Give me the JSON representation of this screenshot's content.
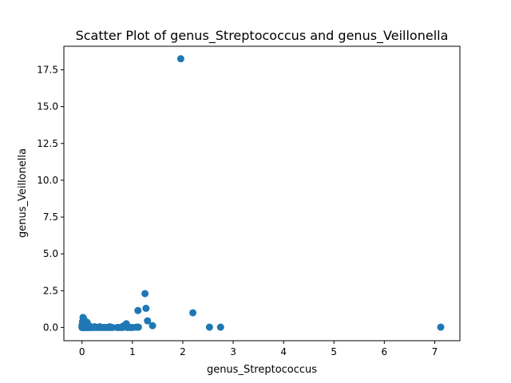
{
  "chart_data": {
    "type": "scatter",
    "title": "Scatter Plot of genus_Streptococcus and genus_Veillonella",
    "xlabel": "genus_Streptococcus",
    "ylabel": "genus_Veillonella",
    "xlim": [
      -0.36,
      7.5
    ],
    "ylim": [
      -0.9,
      19.1
    ],
    "xticks": [
      0,
      1,
      2,
      3,
      4,
      5,
      6,
      7
    ],
    "xtick_labels": [
      "0",
      "1",
      "2",
      "3",
      "4",
      "5",
      "6",
      "7"
    ],
    "yticks": [
      0,
      2.5,
      5,
      7.5,
      10,
      12.5,
      15,
      17.5
    ],
    "ytick_labels": [
      "0.0",
      "2.5",
      "5.0",
      "7.5",
      "10.0",
      "12.5",
      "15.0",
      "17.5"
    ],
    "grid": false,
    "marker_color": "#1f77b4",
    "series": [
      {
        "x": [
          1.96,
          1.25,
          1.27,
          1.11,
          2.2,
          1.3,
          1.4,
          7.12,
          2.53,
          2.75,
          0.0,
          0.01,
          0.02,
          0.03,
          0.05,
          0.07,
          0.09,
          0.1,
          0.12,
          0.15,
          0.18,
          0.2,
          0.25,
          0.3,
          0.35,
          0.4,
          0.45,
          0.5,
          0.55,
          0.6,
          0.7,
          0.75,
          0.8,
          0.85,
          0.9,
          0.95,
          1.0,
          1.08,
          1.12,
          0.02,
          0.04,
          0.01,
          0.03,
          0.06,
          0.1,
          0.12,
          0.15,
          0.08,
          0.02,
          0.0,
          0.0,
          0.05,
          0.03,
          0.25,
          0.35,
          0.55,
          0.88,
          0.82,
          0.05
        ],
        "y": [
          18.25,
          2.3,
          1.3,
          1.15,
          1.0,
          0.45,
          0.12,
          0.02,
          0.02,
          0.02,
          0.0,
          0.0,
          0.0,
          0.0,
          0.0,
          0.0,
          0.0,
          0.0,
          0.0,
          0.0,
          0.0,
          0.0,
          0.0,
          0.0,
          0.0,
          0.0,
          0.0,
          0.0,
          0.0,
          0.0,
          0.0,
          0.0,
          0.0,
          0.05,
          0.0,
          0.0,
          0.0,
          0.02,
          0.02,
          0.68,
          0.55,
          0.4,
          0.3,
          0.2,
          0.35,
          0.15,
          0.1,
          0.08,
          0.25,
          0.15,
          0.05,
          0.05,
          0.1,
          0.05,
          0.05,
          0.05,
          0.25,
          0.1,
          0.45
        ]
      }
    ]
  }
}
